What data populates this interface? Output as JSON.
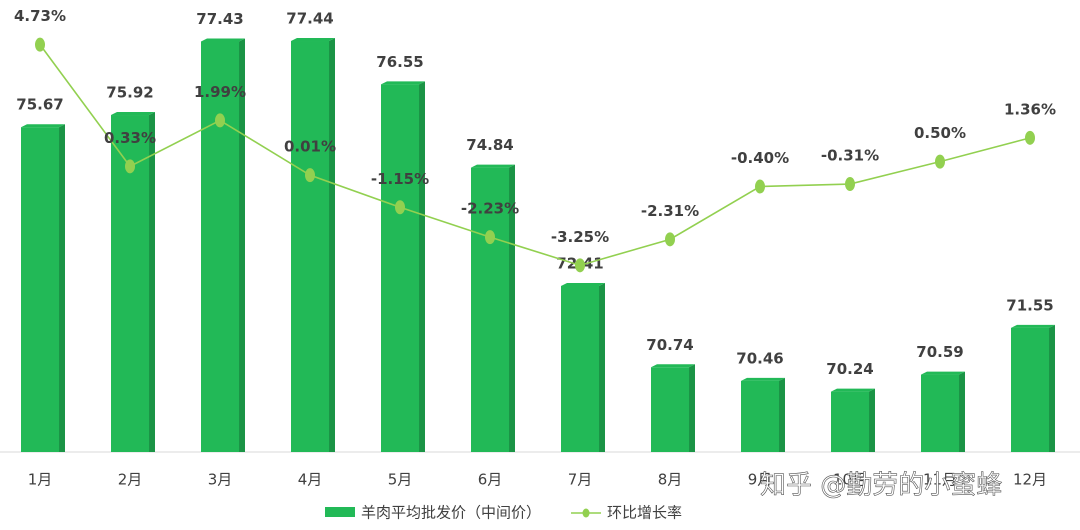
{
  "chart_data": {
    "type": "bar-line",
    "categories": [
      "1月",
      "2月",
      "3月",
      "4月",
      "5月",
      "6月",
      "7月",
      "8月",
      "9月",
      "10月",
      "11月",
      "12月"
    ],
    "series": [
      {
        "name": "羊肉平均批发价（中间价）",
        "type": "bar",
        "color": "#22b957",
        "values": [
          75.67,
          75.92,
          77.43,
          77.44,
          76.55,
          74.84,
          72.41,
          70.74,
          70.46,
          70.24,
          70.59,
          71.55
        ]
      },
      {
        "name": "环比增长率",
        "type": "line",
        "axis": "y2",
        "color": "#92d050",
        "values": [
          4.73,
          0.33,
          1.99,
          0.01,
          -1.15,
          -2.23,
          -3.25,
          -2.31,
          -0.4,
          -0.31,
          0.5,
          1.36
        ],
        "value_labels": [
          "4.73%",
          "0.33%",
          "1.99%",
          "0.01%",
          "-1.15%",
          "-2.23%",
          "-3.25%",
          "-2.31%",
          "-0.40%",
          "-0.31%",
          "0.50%",
          "1.36%"
        ]
      }
    ],
    "ylim": [
      69,
      78.2
    ],
    "y2lim": [
      -10,
      6.2
    ],
    "watermark": "知乎 @勤劳的小蜜蜂"
  }
}
